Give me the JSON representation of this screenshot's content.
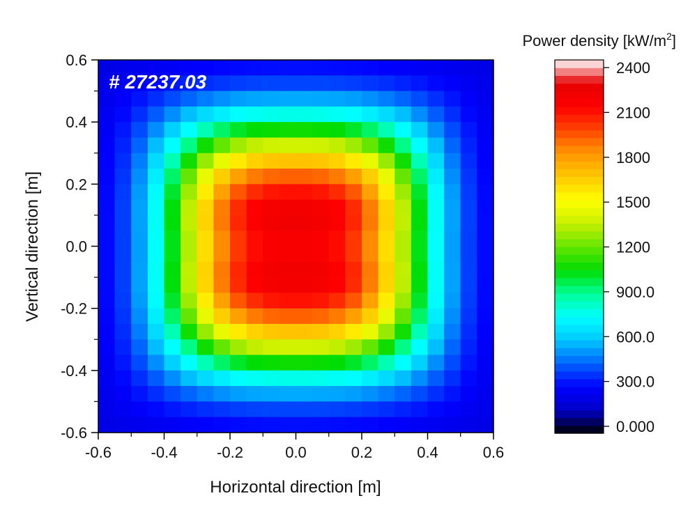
{
  "chart_data": {
    "type": "heatmap",
    "title": "",
    "annotation": "# 27237.03",
    "xlabel": "Horizontal direction [m]",
    "ylabel": "Vertical direction [m]",
    "xlim": [
      -0.6,
      0.6
    ],
    "ylim": [
      -0.6,
      0.6
    ],
    "x_ticks": [
      -0.6,
      -0.4,
      -0.2,
      0.0,
      0.2,
      0.4,
      0.6
    ],
    "x_tick_labels": [
      "-0.6",
      "-0.4",
      "-0.2",
      "0.0",
      "0.2",
      "0.4",
      "0.6"
    ],
    "y_ticks": [
      -0.6,
      -0.4,
      -0.2,
      0.0,
      0.2,
      0.4,
      0.6
    ],
    "y_tick_labels": [
      "-0.6",
      "-0.4",
      "-0.2",
      "0.0",
      "0.2",
      "0.4",
      "0.6"
    ],
    "grid": false,
    "colorbar": {
      "title_main": "Power density [kW/m",
      "title_sup": "2",
      "title_end": "]",
      "min": 0,
      "max": 2400,
      "ticks": [
        2400,
        2100,
        1800,
        1500,
        1200,
        900,
        600,
        300,
        0
      ],
      "tick_labels": [
        "2400",
        "2100",
        "1800",
        "1500",
        "1200",
        "900.0",
        "600.0",
        "300.0",
        "0.000"
      ],
      "colormap": [
        "#000000",
        "#0000c8",
        "#0000ff",
        "#0064ff",
        "#00c8ff",
        "#00ffff",
        "#00ff96",
        "#00dc00",
        "#64e600",
        "#c8f000",
        "#ffff00",
        "#ffc800",
        "#ff9600",
        "#ff4600",
        "#ff0000",
        "#e60000",
        "#ffffff"
      ],
      "placement": "right"
    },
    "grid_shape": [
      24,
      24
    ],
    "x_centers": [
      -0.575,
      -0.525,
      -0.475,
      -0.425,
      -0.375,
      -0.325,
      -0.275,
      -0.225,
      -0.175,
      -0.125,
      -0.075,
      -0.025,
      0.025,
      0.075,
      0.125,
      0.175,
      0.225,
      0.275,
      0.325,
      0.375,
      0.425,
      0.475,
      0.525,
      0.575
    ],
    "y_centers": [
      0.575,
      0.525,
      0.475,
      0.425,
      0.375,
      0.325,
      0.275,
      0.225,
      0.175,
      0.125,
      0.075,
      0.025,
      -0.025,
      -0.075,
      -0.125,
      -0.175,
      -0.225,
      -0.275,
      -0.325,
      -0.375,
      -0.425,
      -0.475,
      -0.525,
      -0.575
    ],
    "values": [
      [
        101,
        116,
        129,
        141,
        154,
        166,
        177,
        185,
        191,
        195,
        198,
        199,
        199,
        198,
        195,
        191,
        185,
        177,
        166,
        154,
        141,
        129,
        116,
        101
      ],
      [
        116,
        141,
        166,
        190,
        214,
        236,
        255,
        270,
        282,
        289,
        293,
        294,
        294,
        293,
        289,
        282,
        270,
        255,
        236,
        214,
        190,
        166,
        141,
        116
      ],
      [
        129,
        166,
        209,
        256,
        303,
        349,
        390,
        422,
        446,
        459,
        466,
        469,
        469,
        466,
        459,
        446,
        422,
        390,
        349,
        303,
        256,
        209,
        166,
        129
      ],
      [
        141,
        190,
        256,
        334,
        418,
        502,
        578,
        639,
        681,
        706,
        718,
        723,
        723,
        718,
        706,
        681,
        639,
        578,
        502,
        418,
        334,
        256,
        190,
        141
      ],
      [
        154,
        214,
        303,
        418,
        550,
        686,
        811,
        912,
        983,
        1024,
        1044,
        1051,
        1051,
        1044,
        1024,
        983,
        912,
        811,
        686,
        550,
        418,
        303,
        214,
        154
      ],
      [
        165,
        235,
        348,
        501,
        686,
        877,
        1055,
        1199,
        1300,
        1360,
        1389,
        1399,
        1399,
        1389,
        1360,
        1300,
        1199,
        1055,
        877,
        686,
        501,
        348,
        235,
        165
      ],
      [
        175,
        254,
        388,
        577,
        810,
        1056,
        1285,
        1471,
        1602,
        1680,
        1716,
        1729,
        1729,
        1716,
        1680,
        1602,
        1471,
        1285,
        1056,
        810,
        577,
        388,
        254,
        175
      ],
      [
        182,
        268,
        420,
        637,
        912,
        1201,
        1471,
        1692,
        1848,
        1939,
        1982,
        1997,
        1997,
        1982,
        1939,
        1848,
        1692,
        1471,
        1201,
        912,
        637,
        420,
        268,
        182
      ],
      [
        187,
        279,
        442,
        678,
        980,
        1298,
        1597,
        1843,
        2017,
        2119,
        2168,
        2184,
        2184,
        2168,
        2119,
        2017,
        1843,
        1597,
        1298,
        980,
        678,
        442,
        279,
        187
      ],
      [
        190,
        284,
        453,
        700,
        1017,
        1353,
        1670,
        1933,
        2119,
        2229,
        2281,
        2299,
        2299,
        2281,
        2229,
        2119,
        1933,
        1670,
        1353,
        1017,
        700,
        453,
        284,
        190
      ],
      [
        191,
        285,
        454,
        701,
        1019,
        1356,
        1676,
        1942,
        2131,
        2243,
        2296,
        2314,
        2314,
        2296,
        2243,
        2131,
        1942,
        1676,
        1356,
        1019,
        701,
        454,
        285,
        191
      ],
      [
        191,
        283,
        449,
        692,
        1004,
        1334,
        1647,
        1906,
        2089,
        2198,
        2249,
        2266,
        2266,
        2249,
        2198,
        2089,
        1906,
        1647,
        1334,
        1004,
        692,
        449,
        283,
        191
      ],
      [
        191,
        283,
        449,
        692,
        1004,
        1334,
        1647,
        1906,
        2089,
        2198,
        2249,
        2266,
        2266,
        2249,
        2198,
        2089,
        1906,
        1647,
        1334,
        1004,
        692,
        449,
        283,
        191
      ],
      [
        191,
        285,
        454,
        701,
        1019,
        1356,
        1676,
        1942,
        2131,
        2243,
        2296,
        2314,
        2314,
        2296,
        2243,
        2131,
        1942,
        1676,
        1356,
        1019,
        701,
        454,
        285,
        191
      ],
      [
        190,
        284,
        453,
        700,
        1017,
        1353,
        1670,
        1933,
        2119,
        2229,
        2281,
        2299,
        2299,
        2281,
        2229,
        2119,
        1933,
        1670,
        1353,
        1017,
        700,
        453,
        284,
        190
      ],
      [
        187,
        279,
        442,
        678,
        980,
        1298,
        1597,
        1843,
        2017,
        2119,
        2168,
        2184,
        2184,
        2168,
        2119,
        2017,
        1843,
        1597,
        1298,
        980,
        678,
        442,
        279,
        187
      ],
      [
        182,
        268,
        420,
        637,
        912,
        1201,
        1471,
        1692,
        1848,
        1939,
        1982,
        1997,
        1997,
        1982,
        1939,
        1848,
        1692,
        1471,
        1201,
        912,
        637,
        420,
        268,
        182
      ],
      [
        175,
        254,
        388,
        577,
        810,
        1056,
        1285,
        1471,
        1602,
        1680,
        1716,
        1729,
        1729,
        1716,
        1680,
        1602,
        1471,
        1285,
        1056,
        810,
        577,
        388,
        254,
        175
      ],
      [
        165,
        235,
        348,
        501,
        686,
        877,
        1055,
        1199,
        1300,
        1360,
        1389,
        1399,
        1399,
        1389,
        1360,
        1300,
        1199,
        1055,
        877,
        686,
        501,
        348,
        235,
        165
      ],
      [
        154,
        214,
        303,
        418,
        550,
        686,
        811,
        912,
        983,
        1024,
        1044,
        1051,
        1051,
        1044,
        1024,
        983,
        912,
        811,
        686,
        550,
        418,
        303,
        214,
        154
      ],
      [
        141,
        190,
        256,
        334,
        418,
        502,
        578,
        639,
        681,
        706,
        718,
        723,
        723,
        718,
        706,
        681,
        639,
        578,
        502,
        418,
        334,
        256,
        190,
        141
      ],
      [
        129,
        166,
        209,
        256,
        303,
        349,
        390,
        422,
        446,
        459,
        466,
        469,
        469,
        466,
        459,
        446,
        422,
        390,
        349,
        303,
        256,
        209,
        166,
        129
      ],
      [
        116,
        141,
        166,
        190,
        214,
        236,
        255,
        270,
        282,
        289,
        293,
        294,
        294,
        293,
        289,
        282,
        270,
        255,
        236,
        214,
        190,
        166,
        141,
        116
      ],
      [
        101,
        116,
        129,
        141,
        154,
        166,
        177,
        185,
        191,
        195,
        198,
        199,
        199,
        198,
        195,
        191,
        185,
        177,
        166,
        154,
        141,
        129,
        116,
        101
      ]
    ]
  }
}
